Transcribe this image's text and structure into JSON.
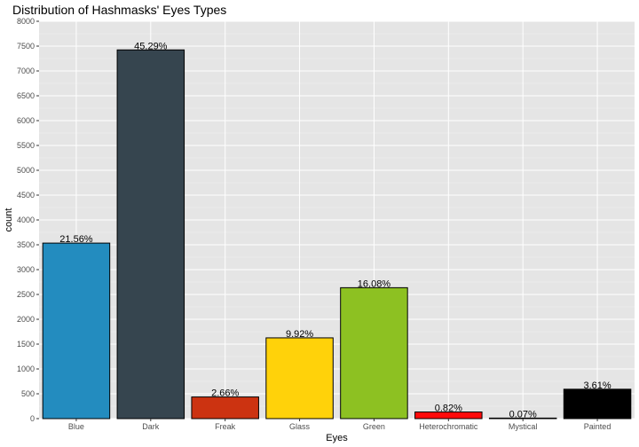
{
  "chart_data": {
    "type": "bar",
    "title": "Distribution of Hashmasks' Eyes Types",
    "xlabel": "Eyes",
    "ylabel": "count",
    "ylim": [
      0,
      8000
    ],
    "y_ticks": [
      0,
      500,
      1000,
      1500,
      2000,
      2500,
      3000,
      3500,
      4000,
      4500,
      5000,
      5500,
      6000,
      6500,
      7000,
      7500,
      8000
    ],
    "y_tick_labels": [
      "0",
      "500",
      "1000",
      "1500",
      "2000",
      "2500",
      "3000",
      "3500",
      "4000",
      "4500",
      "5000",
      "5500",
      "6000",
      "6500",
      "7000",
      "7500",
      "8000"
    ],
    "grid": true,
    "categories": [
      "Blue",
      "Dark",
      "Freak",
      "Glass",
      "Green",
      "Heterochromatic",
      "Mystical",
      "Painted"
    ],
    "values": [
      3534,
      7424,
      436,
      1626,
      2636,
      134,
      11,
      592
    ],
    "data_labels": [
      "21.56%",
      "45.29%",
      "2.66%",
      "9.92%",
      "16.08%",
      "0.82%",
      "0.07%",
      "3.61%"
    ],
    "colors": [
      "#238cbf",
      "#36454f",
      "#cc3311",
      "#ffd20a",
      "#8dc122",
      "#ff0a0a",
      "#a8cfa0",
      "#000000"
    ]
  }
}
